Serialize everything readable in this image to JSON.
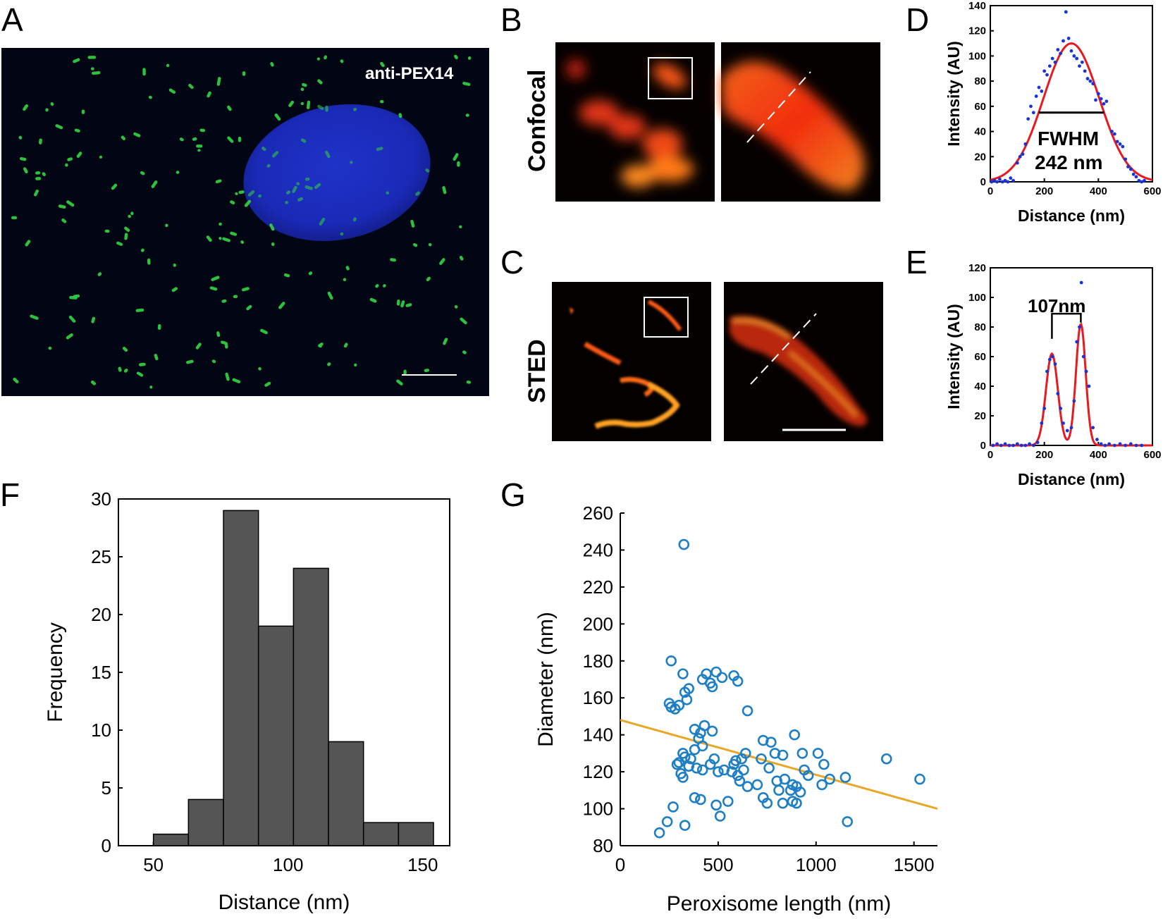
{
  "panels": {
    "a": {
      "label": "A",
      "stain": "anti-PEX14"
    },
    "b": {
      "label": "B",
      "row_label": "Confocal"
    },
    "c": {
      "label": "C",
      "row_label": "STED"
    },
    "d": {
      "label": "D",
      "annotation_1": "FWHM",
      "annotation_2": "242 nm"
    },
    "e": {
      "label": "E",
      "annotation": "107nm"
    },
    "f": {
      "label": "F"
    },
    "g": {
      "label": "G"
    }
  },
  "colors": {
    "nucleus": "#1c2ec0",
    "peroxisome": "#2ecc40",
    "hot": "#ff5a1a",
    "fit": "#e8191f",
    "dots": "#1a33d6",
    "hist_bar": "#555555",
    "scatter": "#1f7fc4",
    "trend": "#e8a825"
  },
  "chart_data": [
    {
      "id": "D",
      "type": "scatter",
      "title": "",
      "xlabel": "Distance  (nm)",
      "ylabel": "Intensity (AU)",
      "xlim": [
        0,
        600
      ],
      "ylim": [
        0,
        140
      ],
      "xticks": [
        "0",
        "200",
        "400",
        "600"
      ],
      "yticks": [
        "0",
        "20",
        "40",
        "60",
        "80",
        "100",
        "120",
        "140"
      ],
      "fit": {
        "type": "gaussian",
        "amplitude": 110,
        "center": 300,
        "fwhm": 242
      },
      "points": [
        [
          5,
          0
        ],
        [
          15,
          1
        ],
        [
          25,
          0
        ],
        [
          35,
          2
        ],
        [
          45,
          0
        ],
        [
          55,
          1
        ],
        [
          65,
          0
        ],
        [
          75,
          3
        ],
        [
          85,
          1
        ],
        [
          100,
          15
        ],
        [
          110,
          20
        ],
        [
          120,
          22
        ],
        [
          130,
          30
        ],
        [
          140,
          50
        ],
        [
          150,
          60
        ],
        [
          160,
          55
        ],
        [
          170,
          68
        ],
        [
          180,
          75
        ],
        [
          190,
          72
        ],
        [
          200,
          88
        ],
        [
          210,
          85
        ],
        [
          220,
          92
        ],
        [
          230,
          98
        ],
        [
          240,
          95
        ],
        [
          250,
          105
        ],
        [
          260,
          102
        ],
        [
          270,
          112
        ],
        [
          280,
          135
        ],
        [
          290,
          114
        ],
        [
          300,
          104
        ],
        [
          310,
          100
        ],
        [
          320,
          98
        ],
        [
          330,
          92
        ],
        [
          340,
          95
        ],
        [
          350,
          88
        ],
        [
          360,
          82
        ],
        [
          370,
          80
        ],
        [
          380,
          78
        ],
        [
          390,
          65
        ],
        [
          400,
          70
        ],
        [
          410,
          66
        ],
        [
          420,
          62
        ],
        [
          430,
          64
        ],
        [
          450,
          40
        ],
        [
          460,
          38
        ],
        [
          470,
          32
        ],
        [
          480,
          30
        ],
        [
          490,
          28
        ],
        [
          500,
          18
        ],
        [
          510,
          12
        ],
        [
          520,
          10
        ],
        [
          530,
          6
        ],
        [
          540,
          4
        ],
        [
          550,
          1
        ],
        [
          560,
          0
        ],
        [
          570,
          1
        ]
      ]
    },
    {
      "id": "E",
      "type": "scatter",
      "title": "",
      "xlabel": "Distance  (nm)",
      "ylabel": "Intensity (AU)",
      "xlim": [
        0,
        600
      ],
      "ylim": [
        0,
        120
      ],
      "xticks": [
        "0",
        "200",
        "400",
        "600"
      ],
      "yticks": [
        "0",
        "20",
        "40",
        "60",
        "80",
        "100",
        "120"
      ],
      "fit": {
        "type": "double_gaussian",
        "peaks": [
          {
            "amplitude": 62,
            "center": 228,
            "sigma": 22
          },
          {
            "amplitude": 82,
            "center": 335,
            "sigma": 18
          }
        ]
      },
      "points": [
        [
          10,
          0
        ],
        [
          25,
          1
        ],
        [
          40,
          0
        ],
        [
          55,
          1
        ],
        [
          70,
          0
        ],
        [
          85,
          0
        ],
        [
          100,
          1
        ],
        [
          115,
          0
        ],
        [
          130,
          0
        ],
        [
          145,
          1
        ],
        [
          160,
          0
        ],
        [
          175,
          2
        ],
        [
          190,
          15
        ],
        [
          200,
          25
        ],
        [
          210,
          50
        ],
        [
          220,
          58
        ],
        [
          230,
          60
        ],
        [
          240,
          55
        ],
        [
          250,
          35
        ],
        [
          260,
          25
        ],
        [
          270,
          15
        ],
        [
          285,
          10
        ],
        [
          300,
          12
        ],
        [
          310,
          30
        ],
        [
          320,
          70
        ],
        [
          330,
          80
        ],
        [
          337,
          110
        ],
        [
          345,
          60
        ],
        [
          355,
          50
        ],
        [
          365,
          40
        ],
        [
          380,
          12
        ],
        [
          395,
          4
        ],
        [
          410,
          1
        ],
        [
          425,
          0
        ],
        [
          440,
          1
        ],
        [
          460,
          0
        ],
        [
          480,
          1
        ],
        [
          500,
          0
        ],
        [
          520,
          1
        ],
        [
          540,
          0
        ],
        [
          560,
          0
        ]
      ]
    },
    {
      "id": "F",
      "type": "bar",
      "title": "",
      "xlabel": "Distance (nm)",
      "ylabel": "Frequency",
      "xlim": [
        37,
        160
      ],
      "ylim": [
        0,
        30
      ],
      "xticks": [
        "50",
        "100",
        "150"
      ],
      "yticks": [
        "0",
        "5",
        "10",
        "15",
        "20",
        "25",
        "30"
      ],
      "bin_edges": [
        50,
        63,
        76,
        89,
        102,
        115,
        128,
        141,
        154
      ],
      "values": [
        1,
        4,
        29,
        19,
        24,
        9,
        2,
        2
      ]
    },
    {
      "id": "G",
      "type": "scatter",
      "title": "",
      "xlabel": "Peroxisome length (nm)",
      "ylabel": "Diameter (nm)",
      "xlim": [
        0,
        1620
      ],
      "ylim": [
        80,
        260
      ],
      "xticks": [
        "0",
        "500",
        "1000",
        "1500"
      ],
      "yticks": [
        "80",
        "100",
        "120",
        "140",
        "160",
        "180",
        "200",
        "220",
        "240",
        "260"
      ],
      "trendline": {
        "x0": 0,
        "y0": 148,
        "x1": 1620,
        "y1": 100
      },
      "points": [
        [
          325,
          243
        ],
        [
          260,
          180
        ],
        [
          320,
          173
        ],
        [
          250,
          157
        ],
        [
          260,
          155
        ],
        [
          280,
          154
        ],
        [
          300,
          156
        ],
        [
          340,
          159
        ],
        [
          350,
          165
        ],
        [
          330,
          163
        ],
        [
          420,
          170
        ],
        [
          440,
          173
        ],
        [
          460,
          168
        ],
        [
          470,
          166
        ],
        [
          490,
          174
        ],
        [
          520,
          171
        ],
        [
          580,
          172
        ],
        [
          600,
          169
        ],
        [
          650,
          153
        ],
        [
          380,
          143
        ],
        [
          430,
          145
        ],
        [
          470,
          142
        ],
        [
          400,
          138
        ],
        [
          410,
          141
        ],
        [
          380,
          132
        ],
        [
          420,
          134
        ],
        [
          360,
          127
        ],
        [
          330,
          128
        ],
        [
          300,
          125
        ],
        [
          290,
          124
        ],
        [
          320,
          130
        ],
        [
          310,
          119
        ],
        [
          320,
          117
        ],
        [
          350,
          123
        ],
        [
          390,
          122
        ],
        [
          420,
          121
        ],
        [
          460,
          124
        ],
        [
          480,
          127
        ],
        [
          500,
          120
        ],
        [
          530,
          121
        ],
        [
          570,
          120
        ],
        [
          580,
          124
        ],
        [
          590,
          126
        ],
        [
          600,
          118
        ],
        [
          610,
          115
        ],
        [
          620,
          127
        ],
        [
          640,
          130
        ],
        [
          630,
          121
        ],
        [
          650,
          112
        ],
        [
          700,
          113
        ],
        [
          730,
          137
        ],
        [
          770,
          136
        ],
        [
          790,
          130
        ],
        [
          830,
          129
        ],
        [
          890,
          140
        ],
        [
          930,
          130
        ],
        [
          1010,
          130
        ],
        [
          1040,
          124
        ],
        [
          1070,
          116
        ],
        [
          1150,
          117
        ],
        [
          1360,
          127
        ],
        [
          1530,
          116
        ],
        [
          720,
          127
        ],
        [
          760,
          122
        ],
        [
          800,
          115
        ],
        [
          810,
          110
        ],
        [
          840,
          116
        ],
        [
          870,
          110
        ],
        [
          880,
          113
        ],
        [
          900,
          112
        ],
        [
          920,
          109
        ],
        [
          940,
          121
        ],
        [
          960,
          118
        ],
        [
          1030,
          113
        ],
        [
          730,
          106
        ],
        [
          750,
          103
        ],
        [
          830,
          103
        ],
        [
          880,
          104
        ],
        [
          900,
          103
        ],
        [
          550,
          104
        ],
        [
          490,
          102
        ],
        [
          510,
          96
        ],
        [
          410,
          105
        ],
        [
          380,
          106
        ],
        [
          270,
          101
        ],
        [
          240,
          93
        ],
        [
          200,
          87
        ],
        [
          330,
          91
        ],
        [
          1160,
          93
        ]
      ]
    }
  ]
}
